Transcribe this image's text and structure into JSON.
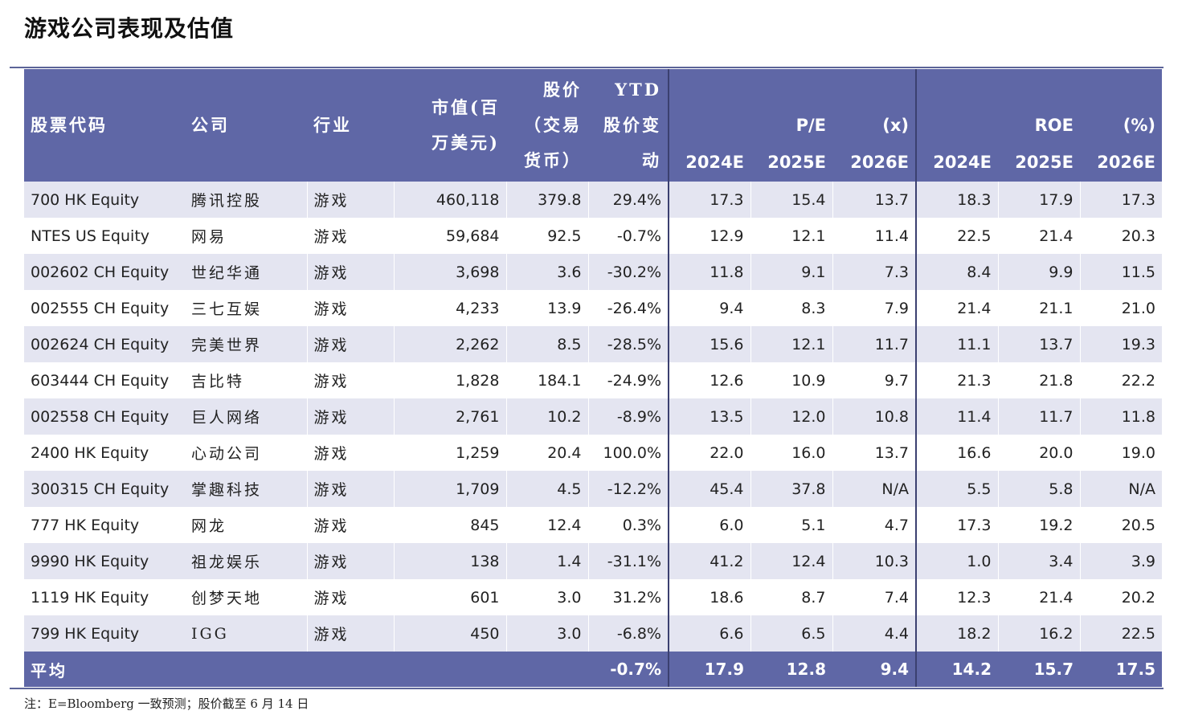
{
  "title": "游戏公司表现及估值",
  "header": {
    "ticker": "股票代码",
    "company": "公司",
    "industry": "行业",
    "mktcap": "市值(百万美元)",
    "price": "股价（交易货币）",
    "ytd": "YTD股价变动",
    "pe_group": "P/E",
    "pe_unit": "(x)",
    "roe_group": "ROE",
    "roe_unit": "(%)",
    "years": [
      "2024E",
      "2025E",
      "2026E"
    ]
  },
  "rows": [
    {
      "ticker": "700 HK Equity",
      "company": "腾讯控股",
      "industry": "游戏",
      "mktcap": "460,118",
      "price": "379.8",
      "ytd": "29.4%",
      "pe": [
        "17.3",
        "15.4",
        "13.7"
      ],
      "roe": [
        "18.3",
        "17.9",
        "17.3"
      ]
    },
    {
      "ticker": "NTES US Equity",
      "company": "网易",
      "industry": "游戏",
      "mktcap": "59,684",
      "price": "92.5",
      "ytd": "-0.7%",
      "pe": [
        "12.9",
        "12.1",
        "11.4"
      ],
      "roe": [
        "22.5",
        "21.4",
        "20.3"
      ]
    },
    {
      "ticker": "002602 CH Equity",
      "company": "世纪华通",
      "industry": "游戏",
      "mktcap": "3,698",
      "price": "3.6",
      "ytd": "-30.2%",
      "pe": [
        "11.8",
        "9.1",
        "7.3"
      ],
      "roe": [
        "8.4",
        "9.9",
        "11.5"
      ]
    },
    {
      "ticker": "002555 CH Equity",
      "company": "三七互娱",
      "industry": "游戏",
      "mktcap": "4,233",
      "price": "13.9",
      "ytd": "-26.4%",
      "pe": [
        "9.4",
        "8.3",
        "7.9"
      ],
      "roe": [
        "21.4",
        "21.1",
        "21.0"
      ]
    },
    {
      "ticker": "002624 CH Equity",
      "company": "完美世界",
      "industry": "游戏",
      "mktcap": "2,262",
      "price": "8.5",
      "ytd": "-28.5%",
      "pe": [
        "15.6",
        "12.1",
        "11.7"
      ],
      "roe": [
        "11.1",
        "13.7",
        "19.3"
      ]
    },
    {
      "ticker": "603444 CH Equity",
      "company": "吉比特",
      "industry": "游戏",
      "mktcap": "1,828",
      "price": "184.1",
      "ytd": "-24.9%",
      "pe": [
        "12.6",
        "10.9",
        "9.7"
      ],
      "roe": [
        "21.3",
        "21.8",
        "22.2"
      ]
    },
    {
      "ticker": "002558 CH Equity",
      "company": "巨人网络",
      "industry": "游戏",
      "mktcap": "2,761",
      "price": "10.2",
      "ytd": "-8.9%",
      "pe": [
        "13.5",
        "12.0",
        "10.8"
      ],
      "roe": [
        "11.4",
        "11.7",
        "11.8"
      ]
    },
    {
      "ticker": "2400 HK Equity",
      "company": "心动公司",
      "industry": "游戏",
      "mktcap": "1,259",
      "price": "20.4",
      "ytd": "100.0%",
      "pe": [
        "22.0",
        "16.0",
        "13.7"
      ],
      "roe": [
        "16.6",
        "20.0",
        "19.0"
      ]
    },
    {
      "ticker": "300315 CH Equity",
      "company": "掌趣科技",
      "industry": "游戏",
      "mktcap": "1,709",
      "price": "4.5",
      "ytd": "-12.2%",
      "pe": [
        "45.4",
        "37.8",
        "N/A"
      ],
      "roe": [
        "5.5",
        "5.8",
        "N/A"
      ]
    },
    {
      "ticker": "777 HK Equity",
      "company": "网龙",
      "industry": "游戏",
      "mktcap": "845",
      "price": "12.4",
      "ytd": "0.3%",
      "pe": [
        "6.0",
        "5.1",
        "4.7"
      ],
      "roe": [
        "17.3",
        "19.2",
        "20.5"
      ]
    },
    {
      "ticker": "9990 HK Equity",
      "company": "祖龙娱乐",
      "industry": "游戏",
      "mktcap": "138",
      "price": "1.4",
      "ytd": "-31.1%",
      "pe": [
        "41.2",
        "12.4",
        "10.3"
      ],
      "roe": [
        "1.0",
        "3.4",
        "3.9"
      ]
    },
    {
      "ticker": "1119 HK Equity",
      "company": "创梦天地",
      "industry": "游戏",
      "mktcap": "601",
      "price": "3.0",
      "ytd": "31.2%",
      "pe": [
        "18.6",
        "8.7",
        "7.4"
      ],
      "roe": [
        "12.3",
        "21.4",
        "20.2"
      ]
    },
    {
      "ticker": "799 HK Equity",
      "company": "IGG",
      "industry": "游戏",
      "mktcap": "450",
      "price": "3.0",
      "ytd": "-6.8%",
      "pe": [
        "6.6",
        "6.5",
        "4.4"
      ],
      "roe": [
        "18.2",
        "16.2",
        "22.5"
      ]
    }
  ],
  "average": {
    "label": "平均",
    "ytd": "-0.7%",
    "pe": [
      "17.9",
      "12.8",
      "9.4"
    ],
    "roe": [
      "14.2",
      "15.7",
      "17.5"
    ]
  },
  "footnote": "注：E=Bloomberg 一致预测；股价截至 6 月 14 日",
  "colors": {
    "header_bg": "#5f67a6",
    "stripe": "#e4e5f1",
    "rule": "#5c6498"
  }
}
